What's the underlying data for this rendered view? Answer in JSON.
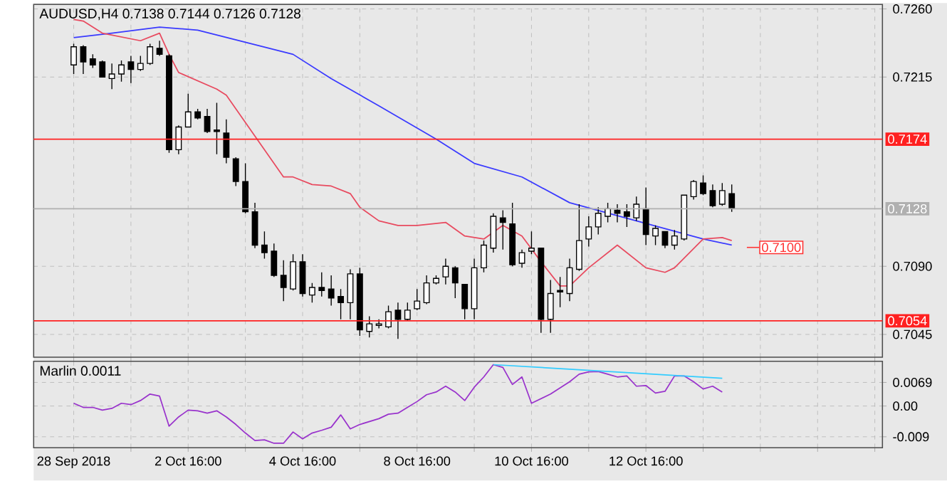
{
  "chart_data": [
    {
      "type": "candlestick",
      "title": "AUDUSD,H4  0.7138 0.7144 0.7126 0.7128",
      "categories": [
        null,
        null,
        null,
        null,
        null,
        null,
        null,
        null,
        null,
        null,
        null,
        null,
        null,
        null,
        null,
        null,
        null,
        null,
        null,
        null,
        null,
        null,
        null,
        null,
        null,
        null,
        null,
        null,
        null,
        null,
        null,
        null,
        null,
        null,
        null,
        null,
        null,
        null,
        null,
        null,
        null,
        null,
        null,
        null,
        null,
        null,
        null,
        null,
        null,
        null,
        null,
        null,
        null,
        null,
        null,
        null,
        null,
        null,
        null,
        null,
        null,
        null,
        null,
        null,
        null,
        null,
        null,
        null,
        null,
        null
      ],
      "ohlc": [
        [
          0.7223,
          0.7237,
          0.7217,
          0.7235
        ],
        [
          0.7235,
          0.7236,
          0.7217,
          0.7225
        ],
        [
          0.7227,
          0.723,
          0.7221,
          0.7223
        ],
        [
          0.7225,
          0.7226,
          0.7215,
          0.7215
        ],
        [
          0.7214,
          0.7224,
          0.7207,
          0.7217
        ],
        [
          0.7217,
          0.7226,
          0.7212,
          0.7223
        ],
        [
          0.7225,
          0.7229,
          0.7211,
          0.722
        ],
        [
          0.722,
          0.7229,
          0.7219,
          0.7224
        ],
        [
          0.7224,
          0.7237,
          0.7223,
          0.7235
        ],
        [
          0.7234,
          0.7239,
          0.7229,
          0.723
        ],
        [
          0.7229,
          0.723,
          0.7165,
          0.7167
        ],
        [
          0.7167,
          0.7183,
          0.7164,
          0.7182
        ],
        [
          0.7182,
          0.7204,
          0.7182,
          0.7192
        ],
        [
          0.7192,
          0.7194,
          0.7187,
          0.7188
        ],
        [
          0.7189,
          0.7194,
          0.7178,
          0.7179
        ],
        [
          0.718,
          0.7198,
          0.7164,
          0.7179
        ],
        [
          0.7178,
          0.7187,
          0.7158,
          0.7162
        ],
        [
          0.7161,
          0.7162,
          0.7143,
          0.7146
        ],
        [
          0.7146,
          0.7158,
          0.7125,
          0.7126
        ],
        [
          0.7126,
          0.7132,
          0.7102,
          0.7104
        ],
        [
          0.7104,
          0.7113,
          0.7095,
          0.7099
        ],
        [
          0.71,
          0.7105,
          0.7083,
          0.7084
        ],
        [
          0.7084,
          0.7094,
          0.7067,
          0.7076
        ],
        [
          0.7075,
          0.7098,
          0.7074,
          0.7093
        ],
        [
          0.7093,
          0.7098,
          0.707,
          0.7072
        ],
        [
          0.7071,
          0.7079,
          0.7066,
          0.7076
        ],
        [
          0.7076,
          0.7086,
          0.707,
          0.7074
        ],
        [
          0.7075,
          0.7084,
          0.7064,
          0.7069
        ],
        [
          0.707,
          0.7075,
          0.7055,
          0.7066
        ],
        [
          0.7066,
          0.7088,
          0.7055,
          0.7085
        ],
        [
          0.7085,
          0.7089,
          0.7044,
          0.7048
        ],
        [
          0.7047,
          0.7057,
          0.7043,
          0.7052
        ],
        [
          0.7051,
          0.7055,
          0.7049,
          0.7052
        ],
        [
          0.705,
          0.7064,
          0.7049,
          0.706
        ],
        [
          0.7061,
          0.7066,
          0.7042,
          0.7055
        ],
        [
          0.7055,
          0.7066,
          0.7054,
          0.7061
        ],
        [
          0.7062,
          0.7075,
          0.7061,
          0.7067
        ],
        [
          0.7066,
          0.7084,
          0.7065,
          0.7079
        ],
        [
          0.7079,
          0.7084,
          0.7078,
          0.7082
        ],
        [
          0.7083,
          0.7095,
          0.7078,
          0.709
        ],
        [
          0.7089,
          0.709,
          0.7069,
          0.7079
        ],
        [
          0.7078,
          0.7078,
          0.7055,
          0.7062
        ],
        [
          0.7062,
          0.7095,
          0.7055,
          0.7089
        ],
        [
          0.7089,
          0.7107,
          0.7086,
          0.7104
        ],
        [
          0.7102,
          0.7125,
          0.7099,
          0.7123
        ],
        [
          0.7122,
          0.7127,
          0.7101,
          0.7119
        ],
        [
          0.7118,
          0.7132,
          0.709,
          0.7091
        ],
        [
          0.7092,
          0.7101,
          0.7089,
          0.7099
        ],
        [
          0.71,
          0.7113,
          0.7098,
          0.7102
        ],
        [
          0.7102,
          0.7102,
          0.7046,
          0.7055
        ],
        [
          0.7055,
          0.7081,
          0.7046,
          0.7072
        ],
        [
          0.7074,
          0.7083,
          0.7063,
          0.7073
        ],
        [
          0.7072,
          0.7095,
          0.7067,
          0.7089
        ],
        [
          0.7088,
          0.7131,
          0.7087,
          0.7107
        ],
        [
          0.7108,
          0.7123,
          0.7103,
          0.7116
        ],
        [
          0.7116,
          0.7129,
          0.7111,
          0.7125
        ],
        [
          0.7123,
          0.7132,
          0.7119,
          0.7128
        ],
        [
          0.7127,
          0.7131,
          0.7119,
          0.7125
        ],
        [
          0.7126,
          0.7131,
          0.7116,
          0.7123
        ],
        [
          0.7122,
          0.7136,
          0.712,
          0.7131
        ],
        [
          0.7128,
          0.7142,
          0.7104,
          0.7111
        ],
        [
          0.711,
          0.7117,
          0.7104,
          0.7115
        ],
        [
          0.7113,
          0.7113,
          0.7102,
          0.7104
        ],
        [
          0.7104,
          0.7114,
          0.7101,
          0.711
        ],
        [
          0.7108,
          0.7137,
          0.7107,
          0.7137
        ],
        [
          0.7136,
          0.7147,
          0.7134,
          0.7146
        ],
        [
          0.7145,
          0.715,
          0.7137,
          0.7138
        ],
        [
          0.714,
          0.7144,
          0.7129,
          0.713
        ],
        [
          0.7131,
          0.7145,
          0.713,
          0.714
        ],
        [
          0.7138,
          0.7144,
          0.7126,
          0.7128
        ]
      ],
      "series": [
        {
          "type": "line",
          "color": "#3a3aff",
          "values": [
            0.7241,
            null,
            null,
            null,
            0.7244,
            null,
            null,
            null,
            null,
            0.7248,
            null,
            null,
            null,
            0.7246,
            null,
            null,
            null,
            null,
            0.7238,
            null,
            null,
            null,
            null,
            0.723,
            null,
            null,
            null,
            0.7214,
            null,
            null,
            null,
            null,
            0.7196,
            null,
            null,
            null,
            null,
            null,
            0.7174,
            null,
            null,
            null,
            0.7158,
            null,
            null,
            null,
            null,
            0.7149,
            null,
            null,
            null,
            null,
            0.7132,
            null,
            null,
            null,
            null,
            null,
            null,
            0.712,
            null,
            null,
            null,
            null,
            null,
            null,
            0.7108,
            null,
            null,
            0.7104
          ]
        },
        {
          "type": "line",
          "color": "#e84a5f",
          "values": [
            0.7253,
            0.7252,
            null,
            0.7244,
            null,
            null,
            null,
            0.7239,
            null,
            0.7244,
            0.723,
            0.7218,
            null,
            null,
            null,
            0.7207,
            0.7203,
            null,
            null,
            0.7176,
            null,
            null,
            0.7149,
            0.7149,
            null,
            0.7144,
            null,
            0.7143,
            null,
            0.7138,
            0.7129,
            null,
            0.712,
            null,
            0.7117,
            null,
            0.7117,
            null,
            null,
            0.7119,
            null,
            0.711,
            null,
            0.7108,
            null,
            0.7117,
            null,
            0.711,
            null,
            0.7093,
            null,
            0.7077,
            0.7077,
            null,
            0.7089,
            null,
            null,
            0.7104,
            null,
            null,
            0.7089,
            null,
            0.7086,
            0.7089,
            null,
            null,
            0.7108,
            null,
            0.7109,
            0.7107
          ]
        }
      ],
      "ylim": [
        0.703,
        0.7263
      ],
      "yticks": [
        {
          "value": 0.726,
          "label": "0.7260"
        },
        {
          "value": 0.7215,
          "label": "0.7215"
        },
        {
          "value": 0.709,
          "label": "0.7090"
        },
        {
          "value": 0.7045,
          "label": "0.7045"
        }
      ],
      "grid": true,
      "ref_lines": [
        {
          "axis": "y",
          "value": 0.7174,
          "label": "0.7174",
          "color": "#ff2020"
        },
        {
          "axis": "y",
          "value": 0.7054,
          "label": "0.7054",
          "color": "#ff2020"
        },
        {
          "axis": "y",
          "value": 0.7128,
          "label": "0.7128",
          "color": "#b0b0b0"
        }
      ],
      "annotations": [
        "0.7100"
      ]
    },
    {
      "type": "line",
      "title": "Marlin 0.0011",
      "categories": [
        "28 Sep 2018",
        null,
        null,
        null,
        null,
        null,
        null,
        null,
        null,
        null,
        null,
        null,
        "2 Oct 16:00",
        null,
        null,
        null,
        null,
        null,
        null,
        null,
        null,
        null,
        null,
        null,
        "4 Oct 16:00",
        null,
        null,
        null,
        null,
        null,
        null,
        null,
        null,
        null,
        null,
        null,
        "8 Oct 16:00",
        null,
        null,
        null,
        null,
        null,
        null,
        null,
        null,
        null,
        null,
        null,
        "10 Oct 16:00",
        null,
        null,
        null,
        null,
        null,
        null,
        null,
        null,
        null,
        null,
        null,
        "12 Oct 16:00",
        null,
        null,
        null,
        null,
        null,
        null,
        null,
        null,
        null
      ],
      "series": [
        {
          "type": "line",
          "color": "#9933cc",
          "values": [
            0.0008,
            -0.0004,
            -0.0004,
            -0.0012,
            -0.0007,
            0.0008,
            0.0004,
            0.0016,
            0.0035,
            0.0029,
            -0.0059,
            -0.0032,
            -0.0012,
            -0.0014,
            -0.0021,
            -0.0014,
            -0.0032,
            -0.0054,
            -0.0079,
            -0.0101,
            -0.0099,
            -0.0109,
            -0.0109,
            -0.0076,
            -0.0096,
            -0.0079,
            -0.0071,
            -0.0062,
            -0.0026,
            -0.0067,
            -0.0054,
            null,
            -0.0037,
            -0.0024,
            -0.0021,
            -0.0004,
            0.0013,
            0.0033,
            0.0041,
            0.0058,
            0.0041,
            0.0016,
            0.0055,
            0.0085,
            0.0121,
            0.0113,
            0.0063,
            0.0085,
            0.0008,
            null,
            0.0035,
            null,
            0.0071,
            0.0093,
            0.01,
            0.0101,
            0.0093,
            0.0085,
            0.0088,
            0.0058,
            0.006,
            0.0038,
            0.0043,
            0.0088,
            0.0088,
            0.0071,
            0.005,
            0.0058,
            0.0041,
            null
          ]
        },
        {
          "type": "line",
          "color": "#33ccff",
          "values": [
            null,
            null,
            null,
            null,
            null,
            null,
            null,
            null,
            null,
            null,
            null,
            null,
            null,
            null,
            null,
            null,
            null,
            null,
            null,
            null,
            null,
            null,
            null,
            null,
            null,
            null,
            null,
            null,
            null,
            null,
            null,
            null,
            null,
            null,
            null,
            null,
            null,
            null,
            null,
            null,
            null,
            null,
            null,
            null,
            0.0121,
            null,
            null,
            null,
            null,
            null,
            null,
            null,
            null,
            null,
            null,
            null,
            null,
            null,
            null,
            null,
            null,
            null,
            null,
            null,
            null,
            null,
            null,
            null,
            0.0081,
            null
          ]
        }
      ],
      "ylim": [
        -0.0122,
        0.0131
      ],
      "yticks": [
        {
          "value": 0.0069,
          "label": "0.0069"
        },
        {
          "value": 0,
          "label": "0.00"
        },
        {
          "value": -0.009,
          "label": "-0.009"
        }
      ],
      "grid": true
    }
  ]
}
